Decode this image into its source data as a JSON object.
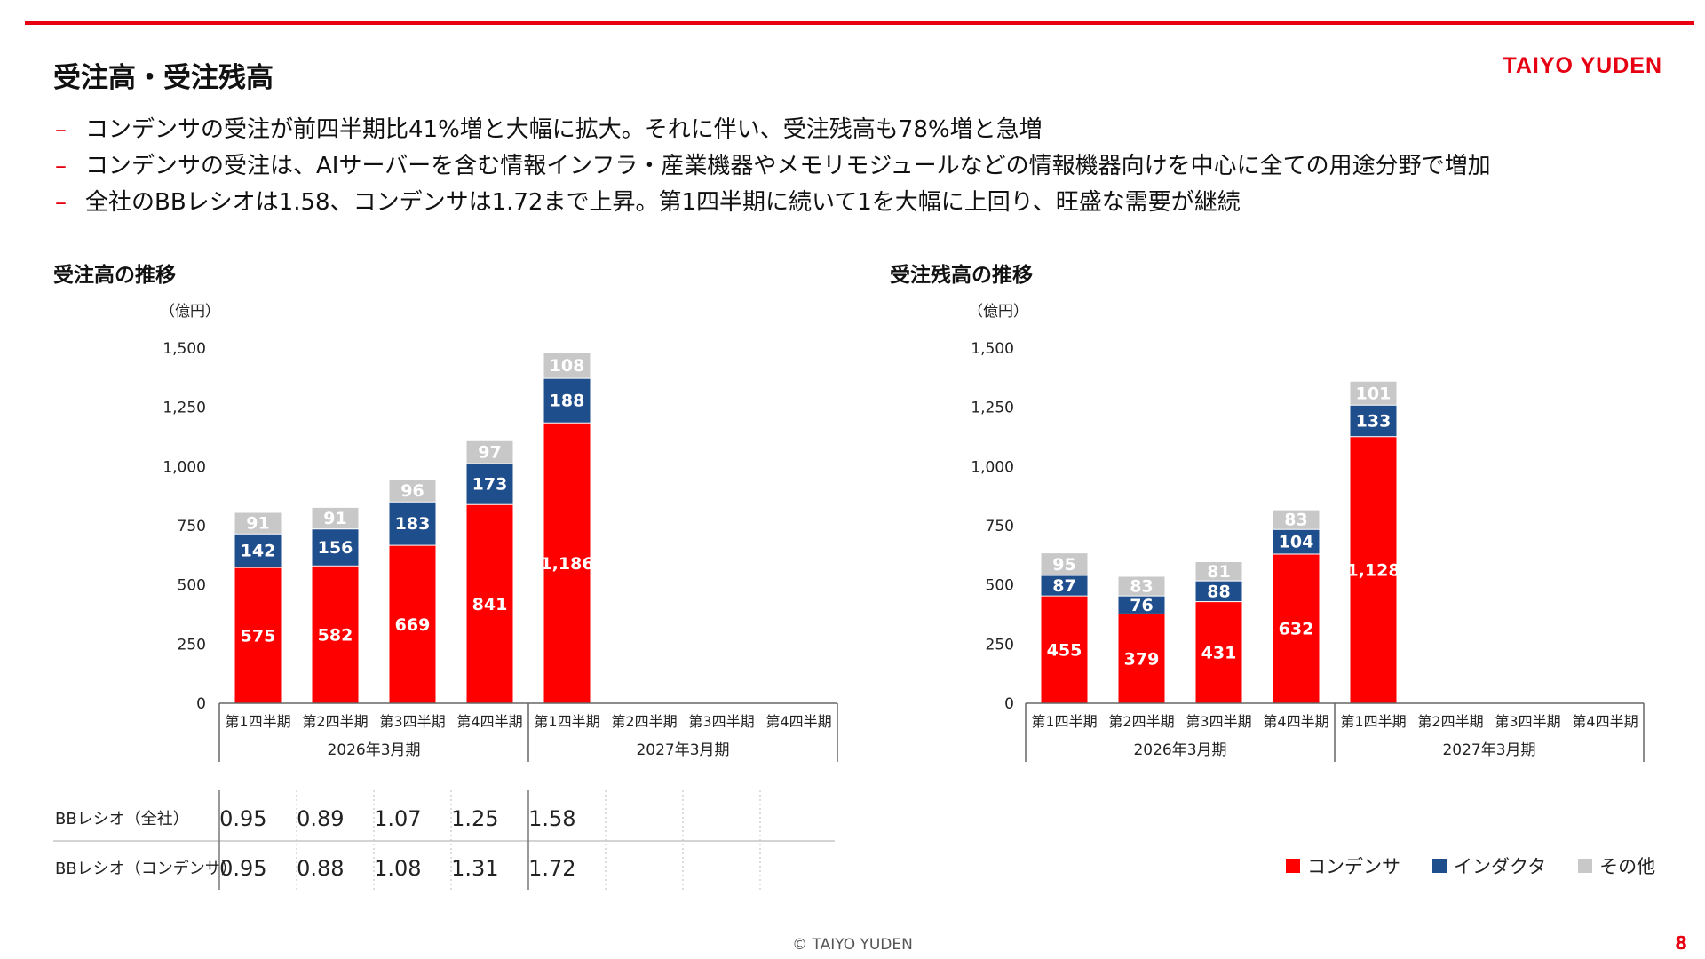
{
  "header": {
    "title": "受注高・受注残高",
    "logo": "TAIYO YUDEN"
  },
  "bullets": [
    "コンデンサの受注が前四半期比41%増と大幅に拡大。それに伴い、受注残高も78%増と急増",
    "コンデンサの受注は、AIサーバーを含む情報インフラ・産業機器やメモリモジュールなどの情報機器向けを中心に全ての用途分野で増加",
    "全社のBBレシオは1.58、コンデンサは1.72まで上昇。第1四半期に続いて1を大幅に上回り、旺盛な需要が継続"
  ],
  "bullet_marker": "–",
  "colors": {
    "capacitor": "#ff0000",
    "inductor": "#1f4e8c",
    "other": "#c8c8c8",
    "accent": "#e60012"
  },
  "chart_data": [
    {
      "type": "bar",
      "stacked": true,
      "title": "受注高の推移",
      "unit": "（億円）",
      "ylim": [
        0,
        1500
      ],
      "yticks": [
        "0",
        "250",
        "500",
        "750",
        "1,000",
        "1,250",
        "1,500"
      ],
      "ytick_values": [
        0,
        250,
        500,
        750,
        1000,
        1250,
        1500
      ],
      "categories": [
        "第1四半期",
        "第2四半期",
        "第3四半期",
        "第4四半期",
        "第1四半期",
        "第2四半期",
        "第3四半期",
        "第4四半期"
      ],
      "groups": [
        {
          "label": "2026年3月期",
          "count": 4
        },
        {
          "label": "2027年3月期",
          "count": 4
        }
      ],
      "series": [
        {
          "name": "コンデンサ",
          "values": [
            575,
            582,
            669,
            841,
            1186,
            null,
            null,
            null
          ],
          "labels": [
            "575",
            "582",
            "669",
            "841",
            "1,186",
            "",
            "",
            ""
          ]
        },
        {
          "name": "インダクタ",
          "values": [
            142,
            156,
            183,
            173,
            188,
            null,
            null,
            null
          ],
          "labels": [
            "142",
            "156",
            "183",
            "173",
            "188",
            "",
            "",
            ""
          ]
        },
        {
          "name": "その他",
          "values": [
            91,
            91,
            96,
            97,
            108,
            null,
            null,
            null
          ],
          "labels": [
            "91",
            "91",
            "96",
            "97",
            "108",
            "",
            "",
            ""
          ]
        }
      ]
    },
    {
      "type": "bar",
      "stacked": true,
      "title": "受注残高の推移",
      "unit": "（億円）",
      "ylim": [
        0,
        1500
      ],
      "yticks": [
        "0",
        "250",
        "500",
        "750",
        "1,000",
        "1,250",
        "1,500"
      ],
      "ytick_values": [
        0,
        250,
        500,
        750,
        1000,
        1250,
        1500
      ],
      "categories": [
        "第1四半期",
        "第2四半期",
        "第3四半期",
        "第4四半期",
        "第1四半期",
        "第2四半期",
        "第3四半期",
        "第4四半期"
      ],
      "groups": [
        {
          "label": "2026年3月期",
          "count": 4
        },
        {
          "label": "2027年3月期",
          "count": 4
        }
      ],
      "series": [
        {
          "name": "コンデンサ",
          "values": [
            455,
            379,
            431,
            632,
            1128,
            null,
            null,
            null
          ],
          "labels": [
            "455",
            "379",
            "431",
            "632",
            "1,128",
            "",
            "",
            ""
          ]
        },
        {
          "name": "インダクタ",
          "values": [
            87,
            76,
            88,
            104,
            133,
            null,
            null,
            null
          ],
          "labels": [
            "87",
            "76",
            "88",
            "104",
            "133",
            "",
            "",
            ""
          ]
        },
        {
          "name": "その他",
          "values": [
            95,
            83,
            81,
            83,
            101,
            null,
            null,
            null
          ],
          "labels": [
            "95",
            "83",
            "81",
            "83",
            "101",
            "",
            "",
            ""
          ]
        }
      ]
    }
  ],
  "bb_ratio": {
    "rows": [
      {
        "label": "BBレシオ（全社）",
        "values": [
          "0.95",
          "0.89",
          "1.07",
          "1.25",
          "1.58",
          "",
          "",
          ""
        ]
      },
      {
        "label": "BBレシオ（コンデンサ）",
        "values": [
          "0.95",
          "0.88",
          "1.08",
          "1.31",
          "1.72",
          "",
          "",
          ""
        ]
      }
    ]
  },
  "legend": [
    {
      "label": "コンデンサ",
      "color": "#ff0000"
    },
    {
      "label": "インダクタ",
      "color": "#1f4e8c"
    },
    {
      "label": "その他",
      "color": "#c8c8c8"
    }
  ],
  "footer": {
    "copyright": "© TAIYO YUDEN",
    "page_number": "8"
  }
}
